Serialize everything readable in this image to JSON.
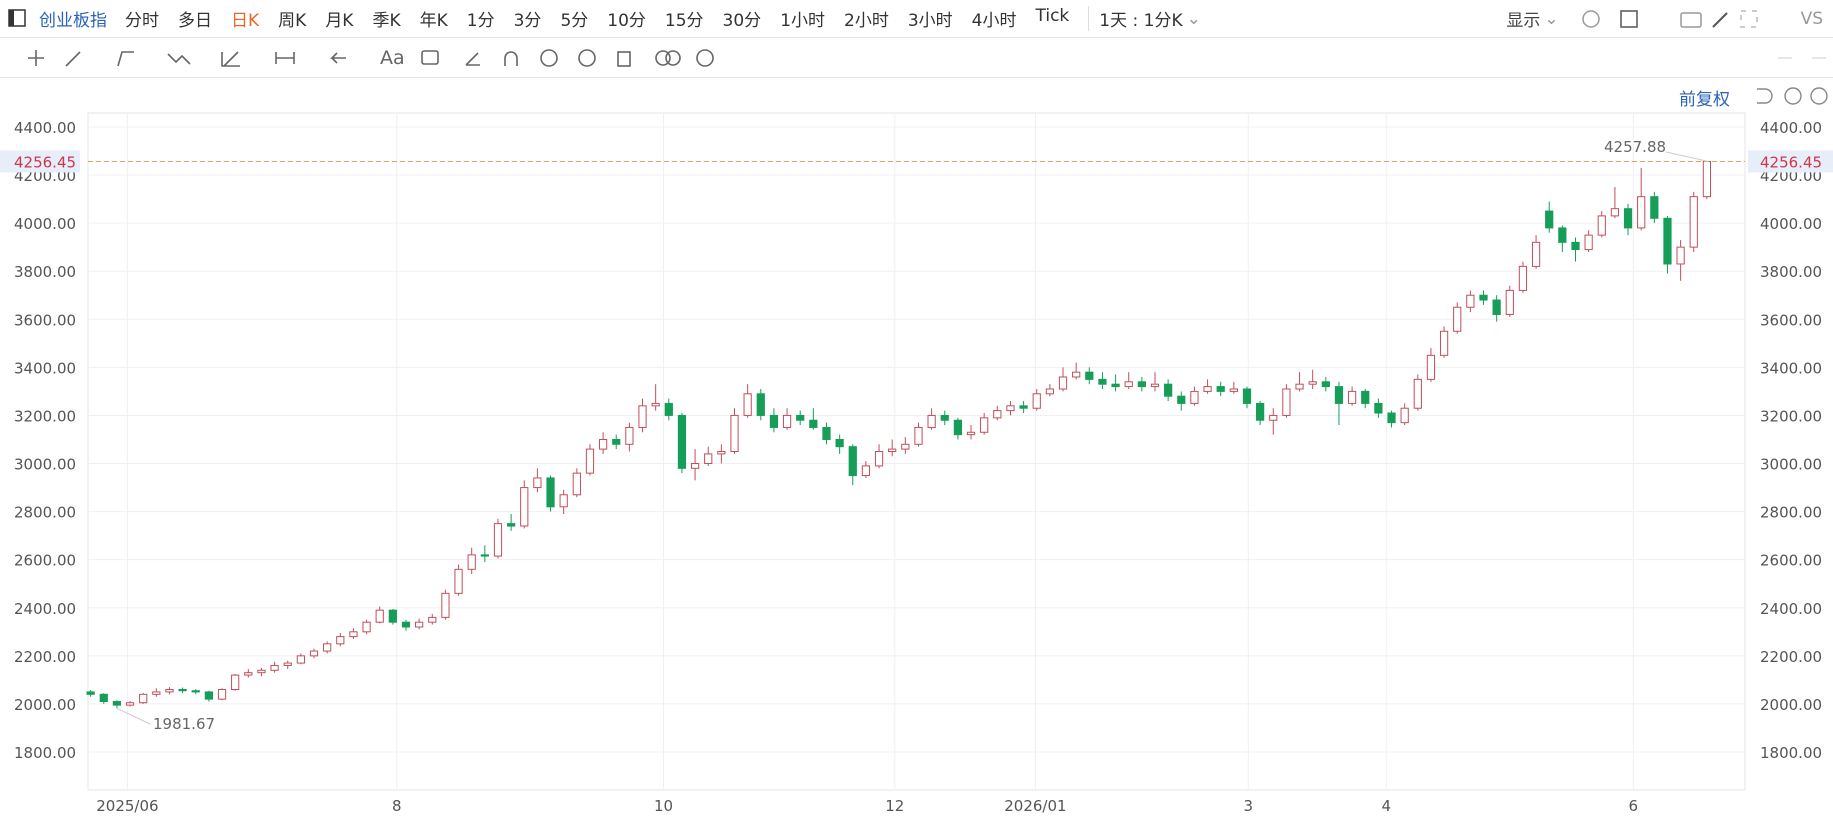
{
  "toolbar": {
    "symbol": "创业板指",
    "periods": [
      "分时",
      "多日",
      "日K",
      "周K",
      "月K",
      "季K",
      "年K",
      "1分",
      "3分",
      "5分",
      "10分",
      "15分",
      "30分",
      "1小时",
      "2小时",
      "3小时",
      "4小时",
      "Tick"
    ],
    "range": "1天 : 1分K",
    "display": "显示",
    "compare": "VS",
    "text_tool": "Aa"
  },
  "adjust": "前复权",
  "chart_data": {
    "type": "candlestick",
    "up_color": "#c24e5c",
    "down_color": "#169e59",
    "grid": true,
    "ylim": [
      1642,
      4458
    ],
    "yticks": [
      {
        "value": 1800,
        "label": "1800.00"
      },
      {
        "value": 2000,
        "label": "2000.00"
      },
      {
        "value": 2200,
        "label": "2200.00"
      },
      {
        "value": 2400,
        "label": "2400.00"
      },
      {
        "value": 2600,
        "label": "2600.00"
      },
      {
        "value": 2800,
        "label": "2800.00"
      },
      {
        "value": 3000,
        "label": "3000.00"
      },
      {
        "value": 3200,
        "label": "3200.00"
      },
      {
        "value": 3400,
        "label": "3400.00"
      },
      {
        "value": 3600,
        "label": "3600.00"
      },
      {
        "value": 3800,
        "label": "3800.00"
      },
      {
        "value": 4000,
        "label": "4000.00"
      },
      {
        "value": 4200,
        "label": "4200.00"
      },
      {
        "value": 4400,
        "label": "4400.00"
      }
    ],
    "xlim": [
      -0.2,
      125.9
    ],
    "xticks": [
      {
        "value": 2.8,
        "label": "2025/06"
      },
      {
        "value": 23.3,
        "label": "8"
      },
      {
        "value": 43.6,
        "label": "10"
      },
      {
        "value": 61.2,
        "label": "12"
      },
      {
        "value": 71.9,
        "label": "2026/01"
      },
      {
        "value": 88.1,
        "label": "3"
      },
      {
        "value": 98.6,
        "label": "4"
      },
      {
        "value": 117.4,
        "label": "6"
      }
    ],
    "candles": [
      [
        2050,
        2058,
        2030,
        2040
      ],
      [
        2040,
        2045,
        2000,
        2010
      ],
      [
        2010,
        2015,
        1981.67,
        1995
      ],
      [
        1995,
        2012,
        1990,
        2005
      ],
      [
        2005,
        2045,
        2000,
        2040
      ],
      [
        2040,
        2065,
        2030,
        2050
      ],
      [
        2050,
        2070,
        2040,
        2060
      ],
      [
        2060,
        2068,
        2045,
        2055
      ],
      [
        2055,
        2062,
        2040,
        2050
      ],
      [
        2050,
        2055,
        2010,
        2020
      ],
      [
        2020,
        2065,
        2015,
        2060
      ],
      [
        2060,
        2125,
        2055,
        2120
      ],
      [
        2120,
        2145,
        2110,
        2130
      ],
      [
        2130,
        2150,
        2115,
        2140
      ],
      [
        2140,
        2175,
        2130,
        2160
      ],
      [
        2160,
        2180,
        2145,
        2170
      ],
      [
        2170,
        2210,
        2165,
        2200
      ],
      [
        2200,
        2230,
        2190,
        2220
      ],
      [
        2220,
        2260,
        2210,
        2250
      ],
      [
        2250,
        2295,
        2240,
        2280
      ],
      [
        2280,
        2315,
        2270,
        2300
      ],
      [
        2300,
        2350,
        2290,
        2340
      ],
      [
        2340,
        2405,
        2335,
        2390
      ],
      [
        2390,
        2395,
        2330,
        2340
      ],
      [
        2340,
        2350,
        2305,
        2320
      ],
      [
        2320,
        2355,
        2310,
        2340
      ],
      [
        2340,
        2375,
        2330,
        2360
      ],
      [
        2360,
        2475,
        2350,
        2460
      ],
      [
        2460,
        2580,
        2450,
        2560
      ],
      [
        2560,
        2650,
        2540,
        2620
      ],
      [
        2620,
        2660,
        2590,
        2615
      ],
      [
        2615,
        2770,
        2605,
        2750
      ],
      [
        2750,
        2790,
        2720,
        2740
      ],
      [
        2740,
        2930,
        2730,
        2900
      ],
      [
        2900,
        2980,
        2880,
        2940
      ],
      [
        2940,
        2950,
        2800,
        2820
      ],
      [
        2820,
        2890,
        2790,
        2870
      ],
      [
        2870,
        2980,
        2860,
        2960
      ],
      [
        2960,
        3080,
        2950,
        3060
      ],
      [
        3060,
        3130,
        3040,
        3100
      ],
      [
        3100,
        3120,
        3060,
        3080
      ],
      [
        3080,
        3170,
        3050,
        3150
      ],
      [
        3150,
        3270,
        3130,
        3240
      ],
      [
        3240,
        3330,
        3220,
        3250
      ],
      [
        3250,
        3270,
        3180,
        3200
      ],
      [
        3200,
        3210,
        2960,
        2980
      ],
      [
        2980,
        3060,
        2930,
        3000
      ],
      [
        3000,
        3070,
        2990,
        3040
      ],
      [
        3040,
        3080,
        3000,
        3050
      ],
      [
        3050,
        3230,
        3040,
        3200
      ],
      [
        3200,
        3330,
        3190,
        3290
      ],
      [
        3290,
        3310,
        3180,
        3200
      ],
      [
        3200,
        3230,
        3130,
        3150
      ],
      [
        3150,
        3230,
        3140,
        3200
      ],
      [
        3200,
        3220,
        3160,
        3180
      ],
      [
        3180,
        3230,
        3140,
        3150
      ],
      [
        3150,
        3170,
        3080,
        3100
      ],
      [
        3100,
        3120,
        3040,
        3070
      ],
      [
        3070,
        3080,
        2910,
        2950
      ],
      [
        2950,
        3010,
        2940,
        2990
      ],
      [
        2990,
        3080,
        2980,
        3050
      ],
      [
        3050,
        3100,
        3030,
        3060
      ],
      [
        3060,
        3110,
        3040,
        3080
      ],
      [
        3080,
        3170,
        3070,
        3150
      ],
      [
        3150,
        3230,
        3140,
        3200
      ],
      [
        3200,
        3220,
        3160,
        3180
      ],
      [
        3180,
        3190,
        3100,
        3120
      ],
      [
        3120,
        3160,
        3100,
        3130
      ],
      [
        3130,
        3210,
        3120,
        3190
      ],
      [
        3190,
        3240,
        3180,
        3220
      ],
      [
        3220,
        3260,
        3200,
        3240
      ],
      [
        3240,
        3260,
        3210,
        3230
      ],
      [
        3230,
        3310,
        3220,
        3290
      ],
      [
        3290,
        3330,
        3280,
        3310
      ],
      [
        3310,
        3400,
        3300,
        3360
      ],
      [
        3360,
        3420,
        3350,
        3380
      ],
      [
        3380,
        3400,
        3330,
        3350
      ],
      [
        3350,
        3380,
        3310,
        3330
      ],
      [
        3330,
        3370,
        3300,
        3320
      ],
      [
        3320,
        3380,
        3310,
        3340
      ],
      [
        3340,
        3360,
        3300,
        3320
      ],
      [
        3320,
        3380,
        3300,
        3330
      ],
      [
        3330,
        3350,
        3260,
        3280
      ],
      [
        3280,
        3300,
        3220,
        3250
      ],
      [
        3250,
        3320,
        3240,
        3300
      ],
      [
        3300,
        3350,
        3290,
        3320
      ],
      [
        3320,
        3340,
        3280,
        3300
      ],
      [
        3300,
        3340,
        3290,
        3310
      ],
      [
        3310,
        3320,
        3230,
        3250
      ],
      [
        3250,
        3260,
        3160,
        3180
      ],
      [
        3180,
        3230,
        3120,
        3200
      ],
      [
        3200,
        3330,
        3190,
        3310
      ],
      [
        3310,
        3380,
        3300,
        3330
      ],
      [
        3330,
        3390,
        3310,
        3340
      ],
      [
        3340,
        3360,
        3300,
        3320
      ],
      [
        3320,
        3340,
        3160,
        3250
      ],
      [
        3250,
        3320,
        3240,
        3300
      ],
      [
        3300,
        3310,
        3230,
        3250
      ],
      [
        3250,
        3270,
        3190,
        3210
      ],
      [
        3210,
        3220,
        3150,
        3170
      ],
      [
        3170,
        3250,
        3160,
        3230
      ],
      [
        3230,
        3370,
        3220,
        3350
      ],
      [
        3350,
        3480,
        3340,
        3450
      ],
      [
        3450,
        3570,
        3440,
        3550
      ],
      [
        3550,
        3670,
        3540,
        3650
      ],
      [
        3650,
        3720,
        3630,
        3700
      ],
      [
        3700,
        3720,
        3660,
        3680
      ],
      [
        3680,
        3700,
        3590,
        3620
      ],
      [
        3620,
        3740,
        3610,
        3720
      ],
      [
        3720,
        3840,
        3710,
        3820
      ],
      [
        3820,
        3950,
        3810,
        3920
      ],
      [
        4050,
        4090,
        3960,
        3980
      ],
      [
        3980,
        3990,
        3880,
        3920
      ],
      [
        3920,
        3940,
        3840,
        3890
      ],
      [
        3890,
        3970,
        3880,
        3950
      ],
      [
        3950,
        4050,
        3940,
        4030
      ],
      [
        4030,
        4150,
        4020,
        4060
      ],
      [
        4060,
        4080,
        3950,
        3980
      ],
      [
        3980,
        4230,
        3970,
        4110
      ],
      [
        4110,
        4130,
        4000,
        4020
      ],
      [
        4020,
        4030,
        3790,
        3830
      ],
      [
        3830,
        3930,
        3760,
        3900
      ],
      [
        3900,
        4130,
        3880,
        4110
      ],
      [
        4110,
        4257.88,
        4100,
        4256.45
      ]
    ]
  }
}
